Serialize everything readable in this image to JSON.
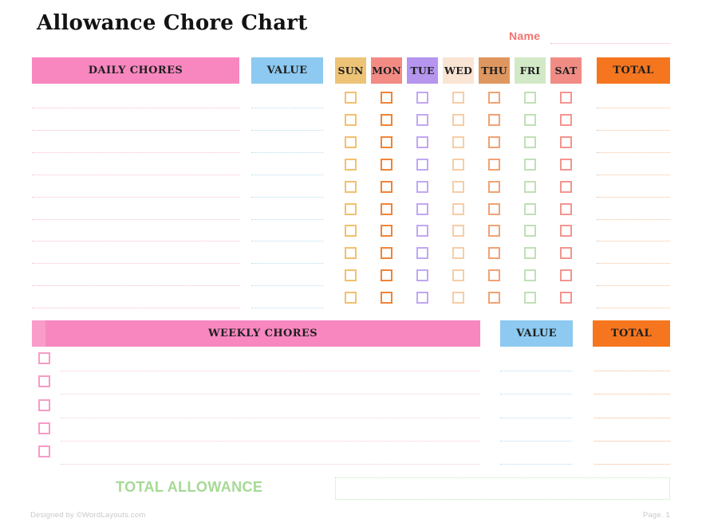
{
  "title": "Allowance Chore Chart",
  "name_field": {
    "label": "Name"
  },
  "daily": {
    "header": "DAILY CHORES",
    "value_header": "VALUE",
    "total_header": "TOTAL",
    "row_count": 10,
    "days": [
      {
        "label": "SUN",
        "header_bg": "#edc377",
        "checkbox_color": "#f3c06e"
      },
      {
        "label": "MON",
        "header_bg": "#f28b84",
        "checkbox_color": "#f08438"
      },
      {
        "label": "TUE",
        "header_bg": "#b595ee",
        "checkbox_color": "#c2a7f2"
      },
      {
        "label": "WED",
        "header_bg": "#fae4d4",
        "checkbox_color": "#f7cda6"
      },
      {
        "label": "THU",
        "header_bg": "#df9760",
        "checkbox_color": "#f2a274"
      },
      {
        "label": "FRI",
        "header_bg": "#d2e9c8",
        "checkbox_color": "#c0e0b6"
      },
      {
        "label": "SAT",
        "header_bg": "#f18c84",
        "checkbox_color": "#f2958f"
      }
    ],
    "line_colors": {
      "chore": "#f6bcd7",
      "value": "#b5dcf4",
      "total": "#f6c196"
    }
  },
  "weekly": {
    "header": "WEEKLY CHORES",
    "value_header": "VALUE",
    "total_header": "TOTAL",
    "row_count": 5,
    "checkbox_color": "#f79cc7",
    "line_colors": {
      "chore": "#f9c6de",
      "value": "#b5dcf4",
      "total": "#f5b184"
    }
  },
  "total_allowance": {
    "label": "TOTAL ALLOWANCE",
    "value": ""
  },
  "footer": {
    "left": "Designed by ©WordLayouts.com",
    "right": "Page. 1"
  },
  "colors": {
    "pink_header": "#f887c0",
    "pink_header_light": "#f99cca",
    "blue_header": "#8dc9f0",
    "orange_header": "#f5761f",
    "name_label": "#f4736e",
    "total_allowance_green": "#a6d995",
    "footer_gray": "#c9c9c9"
  }
}
